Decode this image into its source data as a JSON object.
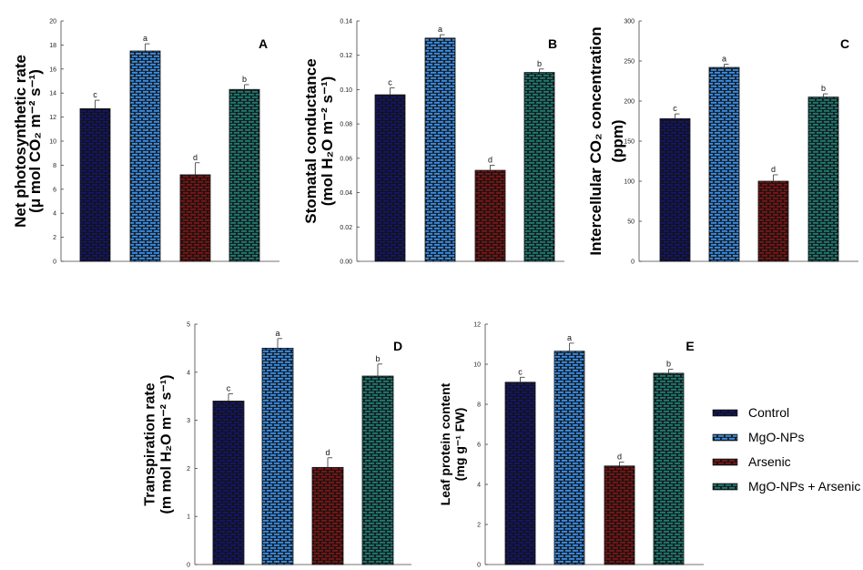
{
  "chart_data": [
    {
      "type": "bar",
      "title": "A",
      "ylabel": [
        "Net photosynthetic rate",
        "(μ mol CO₂ m⁻² s⁻¹)"
      ],
      "ylim": [
        0,
        20
      ],
      "ticks": [
        0,
        2,
        4,
        6,
        8,
        10,
        12,
        14,
        16,
        18,
        20
      ],
      "tick_decimals": 0,
      "categories": [
        "Control",
        "MgO-NPs",
        "Arsenic",
        "MgO-NPs + Arsenic"
      ],
      "values": [
        12.7,
        17.5,
        7.2,
        14.3
      ],
      "errors": [
        0.7,
        0.6,
        1.0,
        0.4
      ],
      "letters": [
        "c",
        "a",
        "d",
        "b"
      ]
    },
    {
      "type": "bar",
      "title": "B",
      "ylabel": [
        "Stomatal conductance",
        "(mol H₂O m⁻² s⁻¹)"
      ],
      "ylim": [
        0,
        0.14
      ],
      "ticks": [
        0,
        0.02,
        0.04,
        0.06,
        0.08,
        0.1,
        0.12,
        0.14
      ],
      "tick_decimals": 2,
      "categories": [
        "Control",
        "MgO-NPs",
        "Arsenic",
        "MgO-NPs + Arsenic"
      ],
      "values": [
        0.097,
        0.13,
        0.053,
        0.11
      ],
      "errors": [
        0.004,
        0.002,
        0.003,
        0.002
      ],
      "letters": [
        "c",
        "a",
        "d",
        "b"
      ]
    },
    {
      "type": "bar",
      "title": "C",
      "ylabel": [
        "Intercellular CO₂ concentration",
        "(ppm)"
      ],
      "ylim": [
        0,
        300
      ],
      "ticks": [
        0,
        50,
        100,
        150,
        200,
        250,
        300
      ],
      "tick_decimals": 0,
      "categories": [
        "Control",
        "MgO-NPs",
        "Arsenic",
        "MgO-NPs + Arsenic"
      ],
      "values": [
        178,
        242,
        100,
        205
      ],
      "errors": [
        6,
        4,
        8,
        4
      ],
      "letters": [
        "c",
        "a",
        "d",
        "b"
      ]
    },
    {
      "type": "bar",
      "title": "D",
      "ylabel": [
        "Transpiration rate",
        "(m mol H₂O m⁻² s⁻¹)"
      ],
      "ylim": [
        0,
        5
      ],
      "ticks": [
        0,
        1,
        2,
        3,
        4,
        5
      ],
      "tick_decimals": 0,
      "categories": [
        "Control",
        "MgO-NPs",
        "Arsenic",
        "MgO-NPs + Arsenic"
      ],
      "values": [
        3.4,
        4.5,
        2.02,
        3.92
      ],
      "errors": [
        0.15,
        0.2,
        0.2,
        0.25
      ],
      "letters": [
        "c",
        "a",
        "d",
        "b"
      ]
    },
    {
      "type": "bar",
      "title": "E",
      "ylabel": [
        "Leaf protein content",
        "(mg g⁻¹ FW)"
      ],
      "ylim": [
        0,
        12
      ],
      "ticks": [
        0,
        2,
        4,
        6,
        8,
        10,
        12
      ],
      "tick_decimals": 0,
      "categories": [
        "Control",
        "MgO-NPs",
        "Arsenic",
        "MgO-NPs + Arsenic"
      ],
      "values": [
        9.1,
        10.65,
        4.92,
        9.55
      ],
      "errors": [
        0.25,
        0.4,
        0.2,
        0.2
      ],
      "letters": [
        "c",
        "a",
        "d",
        "b"
      ]
    }
  ],
  "legend": {
    "placement": "right",
    "items": [
      {
        "label": "Control",
        "color": "#14166a"
      },
      {
        "label": "MgO-NPs",
        "color": "#3a8ee6"
      },
      {
        "label": "Arsenic",
        "color": "#7c1616"
      },
      {
        "label": "MgO-NPs + Arsenic",
        "color": "#1f7b74"
      }
    ]
  }
}
